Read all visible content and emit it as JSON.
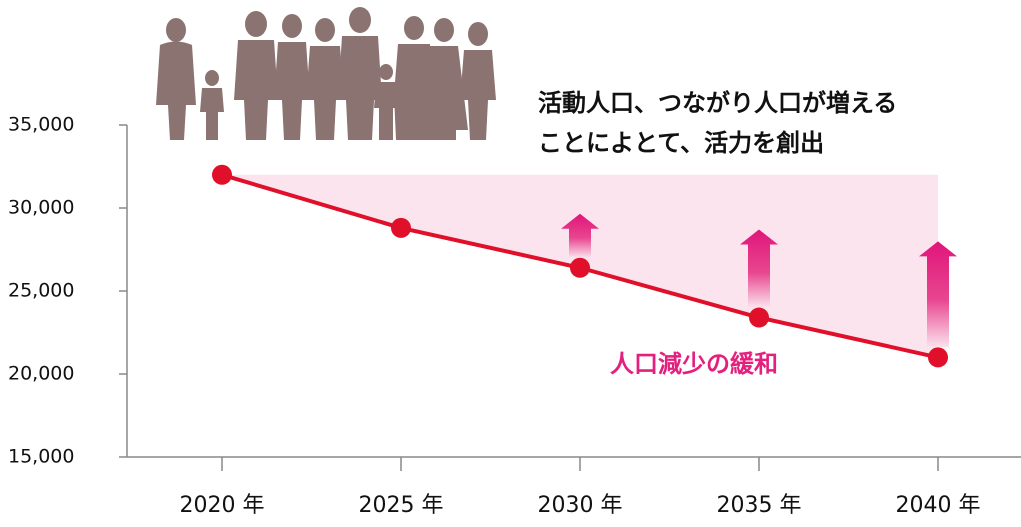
{
  "chart_data": {
    "type": "line",
    "categories": [
      "2020 年",
      "2025 年",
      "2030 年",
      "2035 年",
      "2040 年"
    ],
    "values": [
      32000,
      28800,
      26400,
      23400,
      21000
    ],
    "color": "#e0102a",
    "ylim": [
      15000,
      35000
    ],
    "yticks": [
      {
        "value": 15000,
        "label": "15,000"
      },
      {
        "value": 20000,
        "label": "20,000"
      },
      {
        "value": 25000,
        "label": "25,000"
      },
      {
        "value": 30000,
        "label": "30,000"
      },
      {
        "value": 35000,
        "label": "35,000"
      }
    ],
    "annotations": [
      "活動人口、つながり人口が増える",
      "ことによとて、活力を創出",
      "人口減少の緩和"
    ]
  }
}
